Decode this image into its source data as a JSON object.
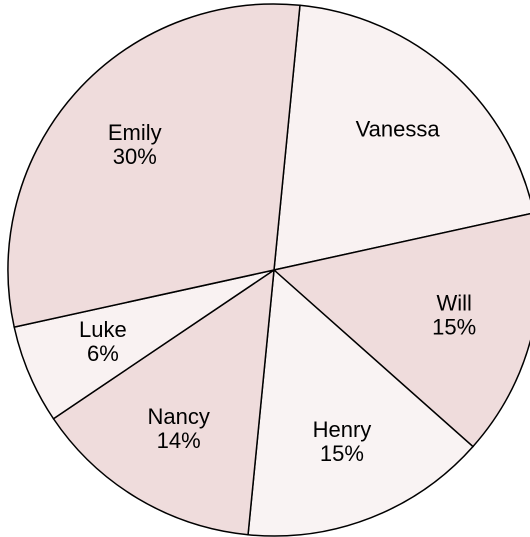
{
  "chart_data": {
    "type": "pie",
    "categories": [
      "Vanessa",
      "Will",
      "Henry",
      "Nancy",
      "Luke",
      "Emily"
    ],
    "values": [
      20,
      15,
      15,
      14,
      6,
      30
    ],
    "value_labels": [
      null,
      "15%",
      "15%",
      "14%",
      "6%",
      "30%"
    ],
    "colors": [
      "#f9f2f2",
      "#efdcdc",
      "#f9f3f3",
      "#efdcdc",
      "#f9f2f2",
      "#efdcdc"
    ]
  }
}
